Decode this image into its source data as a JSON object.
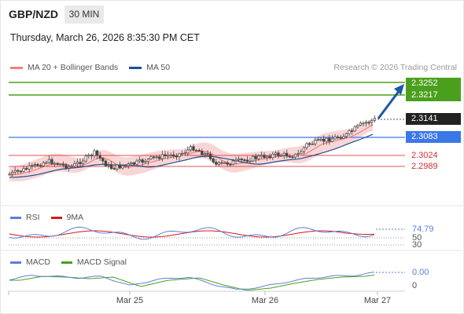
{
  "header": {
    "pair": "GBP/NZD",
    "timeframe": "30 MIN",
    "datetime": "Thursday, March 26, 2026 8:35:30 PM CET"
  },
  "legend": {
    "ma20": "MA 20 + Bollinger Bands",
    "ma50": "MA 50",
    "credit": "Research © 2026 Trading Central"
  },
  "colors": {
    "target": "#4aa01c",
    "pivot": "#3b78e7",
    "support": "#e05050",
    "ma20": "#f08080",
    "ma50": "#1e4f91",
    "band": "#f9d6d6",
    "arrow": "#1e57a8"
  },
  "levels": {
    "target1": "2.3252",
    "target2": "2.3217",
    "last": "2.3141",
    "pivot": "2.3083",
    "support1": "2.3024",
    "support2": "2.2989"
  },
  "rsi": {
    "label": "RSI",
    "ma_label": "9MA",
    "value": "74.79",
    "level_mid": "50",
    "level_low": "30"
  },
  "macd": {
    "label": "MACD",
    "signal_label": "MACD Signal",
    "value": "0.00",
    "zero": "0"
  },
  "xaxis": {
    "labels": [
      "Mar 25",
      "Mar 26",
      "Mar 27"
    ]
  }
}
